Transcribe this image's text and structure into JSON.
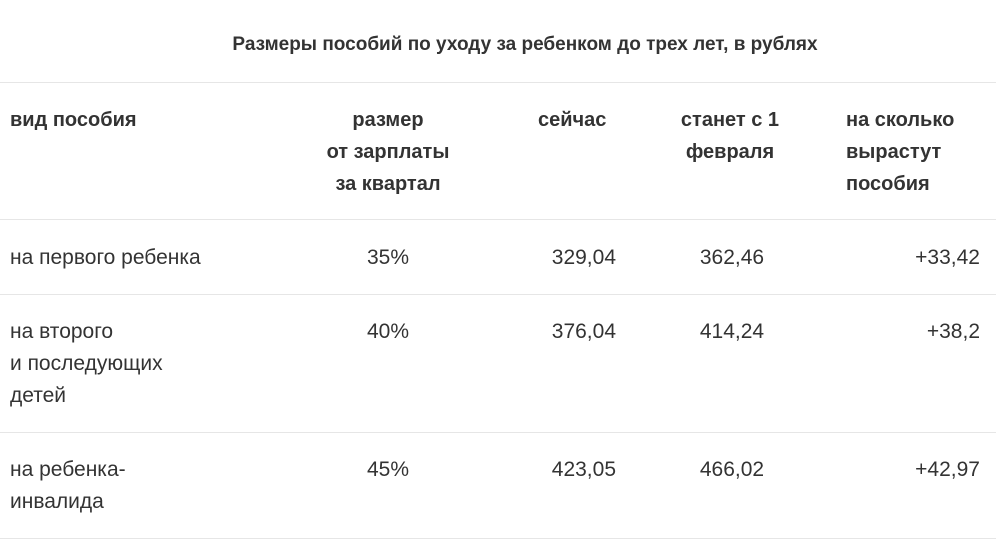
{
  "title": "Размеры пособий по уходу за ребенком до трех лет, в рублях",
  "headers": {
    "type": [
      "вид пособия"
    ],
    "percent": [
      "размер",
      "от зарплаты",
      "за квартал"
    ],
    "now": [
      "сейчас"
    ],
    "feb": [
      "станет с 1",
      "февраля"
    ],
    "increase": [
      "на сколько",
      "вырастут",
      "пособия"
    ]
  },
  "rows": [
    {
      "type": [
        "на первого ребенка"
      ],
      "percent": "35%",
      "now": "329,04",
      "feb": "362,46",
      "increase": "+33,42"
    },
    {
      "type": [
        "на второго",
        "и последующих",
        "детей"
      ],
      "percent": "40%",
      "now": "376,04",
      "feb": "414,24",
      "increase": "+38,2"
    },
    {
      "type": [
        "на ребенка-",
        "инвалида"
      ],
      "percent": "45%",
      "now": "423,05",
      "feb": "466,02",
      "increase": "+42,97"
    }
  ]
}
